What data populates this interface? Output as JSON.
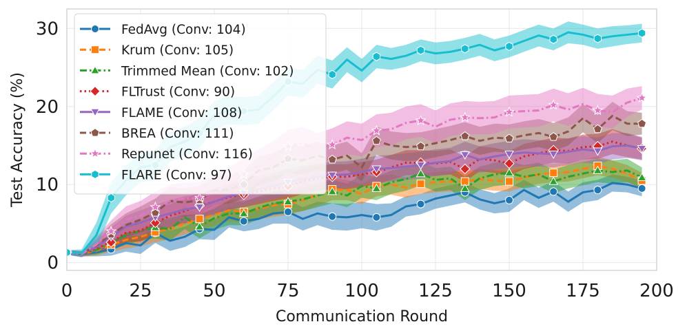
{
  "chart_data": {
    "type": "line",
    "xlabel": "Communication Round",
    "ylabel": "Test Accuracy (%)",
    "xlim": [
      0,
      200
    ],
    "ylim": [
      -1,
      32.5
    ],
    "xticks": [
      0,
      25,
      50,
      75,
      100,
      125,
      150,
      175,
      200
    ],
    "yticks": [
      0,
      10,
      20,
      30
    ],
    "grid": true,
    "legend_position": "top-left",
    "x": [
      0,
      5,
      10,
      15,
      20,
      25,
      30,
      35,
      40,
      45,
      50,
      55,
      60,
      65,
      70,
      75,
      80,
      85,
      90,
      95,
      100,
      105,
      110,
      115,
      120,
      125,
      130,
      135,
      140,
      145,
      150,
      155,
      160,
      165,
      170,
      175,
      180,
      185,
      190,
      195
    ],
    "series": [
      {
        "name": "FedAvg (Conv: 104)",
        "color": "#1f77b4",
        "dash": "solid",
        "marker": "circle",
        "values": [
          1.3,
          1.1,
          1.3,
          1.7,
          2.5,
          2.2,
          3.8,
          2.8,
          3.3,
          4.3,
          4.2,
          5.8,
          5.3,
          5.6,
          6.3,
          6.5,
          5.6,
          6.3,
          5.9,
          5.8,
          6.1,
          5.8,
          6.1,
          7.2,
          7.5,
          8.2,
          8.6,
          9.0,
          8.1,
          7.6,
          8.0,
          9.3,
          8.3,
          9.1,
          7.8,
          9.0,
          9.3,
          10.2,
          10.0,
          9.5
        ],
        "band": [
          0.3,
          0.3,
          0.5,
          0.8,
          1.1,
          1.1,
          1.3,
          1.3,
          1.3,
          1.3,
          1.3,
          1.3,
          1.3,
          1.3,
          1.3,
          1.5,
          1.5,
          1.5,
          1.7,
          1.7,
          1.7,
          1.7,
          1.5,
          1.3,
          1.3,
          1.3,
          1.3,
          1.3,
          1.3,
          1.3,
          1.5,
          1.3,
          1.3,
          1.3,
          1.3,
          1.3,
          1.3,
          1.1,
          1.0,
          1.0
        ]
      },
      {
        "name": "Krum (Conv: 105)",
        "color": "#ff7f0e",
        "dash": "dash",
        "marker": "square",
        "values": [
          1.3,
          1.1,
          1.5,
          2.3,
          2.9,
          3.3,
          3.9,
          4.3,
          5.0,
          5.6,
          6.1,
          6.7,
          6.5,
          6.9,
          7.3,
          7.5,
          8.0,
          8.7,
          9.4,
          9.3,
          8.8,
          9.8,
          10.0,
          9.6,
          10.1,
          10.3,
          10.4,
          10.4,
          10.7,
          10.5,
          10.4,
          10.9,
          11.3,
          11.5,
          11.6,
          12.0,
          12.4,
          12.0,
          11.4,
          10.5
        ],
        "band": [
          0.3,
          0.3,
          0.6,
          0.9,
          1.1,
          1.2,
          1.3,
          1.3,
          1.4,
          1.4,
          1.4,
          1.4,
          1.4,
          1.4,
          1.4,
          1.4,
          1.4,
          1.4,
          1.4,
          1.3,
          1.3,
          1.3,
          1.3,
          1.3,
          1.3,
          1.3,
          1.3,
          1.3,
          1.3,
          1.3,
          1.3,
          1.2,
          1.2,
          1.2,
          1.2,
          1.2,
          1.2,
          1.1,
          1.1,
          1.0
        ]
      },
      {
        "name": "Trimmed Mean (Conv: 102)",
        "color": "#2ca02c",
        "dash": "dashdot",
        "marker": "triangle-up",
        "values": [
          1.3,
          1.1,
          1.6,
          2.6,
          3.5,
          4.1,
          4.5,
          4.3,
          5.8,
          4.6,
          5.7,
          6.3,
          6.3,
          7.0,
          7.6,
          7.8,
          8.1,
          8.6,
          9.1,
          8.6,
          9.8,
          9.5,
          10.3,
          10.7,
          11.4,
          10.6,
          10.8,
          9.5,
          10.8,
          11.3,
          11.5,
          11.0,
          11.3,
          10.4,
          11.0,
          11.4,
          11.8,
          11.6,
          11.8,
          10.9
        ],
        "band": [
          0.3,
          0.3,
          0.6,
          1.0,
          1.2,
          1.3,
          1.4,
          1.5,
          1.5,
          1.5,
          1.5,
          1.5,
          1.5,
          1.5,
          1.5,
          1.5,
          1.5,
          1.5,
          1.5,
          1.5,
          1.5,
          1.5,
          1.5,
          1.5,
          1.5,
          1.5,
          1.5,
          1.5,
          1.5,
          1.5,
          1.5,
          1.5,
          1.5,
          1.5,
          1.5,
          1.5,
          1.5,
          1.5,
          1.5,
          1.3
        ]
      },
      {
        "name": "FLTrust (Conv: 90)",
        "color": "#d62728",
        "dash": "dot",
        "marker": "diamond",
        "values": [
          1.3,
          1.1,
          1.8,
          2.6,
          3.8,
          4.1,
          5.1,
          6.0,
          6.6,
          7.3,
          7.8,
          8.4,
          8.7,
          9.1,
          9.5,
          9.8,
          10.4,
          10.8,
          11.0,
          11.0,
          11.3,
          11.6,
          12.2,
          12.8,
          12.8,
          12.7,
          12.9,
          12.0,
          13.3,
          13.1,
          12.7,
          13.6,
          14.0,
          14.4,
          14.3,
          14.8,
          14.9,
          15.5,
          15.0,
          14.6
        ],
        "band": [
          0.3,
          0.3,
          0.6,
          1.0,
          1.2,
          1.4,
          1.5,
          1.5,
          1.6,
          1.6,
          1.6,
          1.6,
          1.6,
          1.6,
          1.6,
          1.6,
          1.6,
          1.6,
          1.6,
          1.6,
          1.6,
          1.6,
          1.6,
          1.6,
          1.6,
          1.6,
          1.6,
          1.6,
          1.6,
          1.6,
          1.6,
          1.6,
          1.6,
          1.6,
          1.6,
          1.6,
          1.6,
          1.6,
          1.5,
          1.4
        ]
      },
      {
        "name": "FLAME (Conv: 108)",
        "color": "#9467bd",
        "dash": "solid",
        "marker": "triangle-down",
        "values": [
          1.3,
          1.1,
          2.0,
          3.3,
          4.6,
          5.1,
          5.8,
          6.3,
          6.8,
          7.1,
          7.8,
          8.5,
          8.9,
          9.4,
          9.8,
          10.3,
          10.7,
          11.0,
          11.2,
          11.3,
          11.6,
          12.0,
          12.1,
          12.3,
          12.5,
          12.8,
          13.0,
          13.8,
          13.2,
          13.6,
          13.9,
          14.1,
          14.0,
          13.9,
          14.2,
          14.5,
          14.3,
          14.9,
          15.0,
          14.6
        ],
        "band": [
          0.3,
          0.3,
          0.8,
          1.2,
          1.4,
          1.6,
          1.6,
          1.7,
          1.7,
          1.7,
          1.7,
          1.7,
          1.7,
          1.7,
          1.7,
          1.7,
          1.7,
          1.7,
          1.7,
          1.7,
          1.7,
          1.7,
          1.7,
          1.7,
          1.7,
          1.7,
          1.7,
          1.7,
          1.7,
          1.7,
          1.7,
          1.7,
          1.7,
          1.7,
          1.7,
          1.7,
          1.7,
          1.7,
          1.6,
          1.5
        ]
      },
      {
        "name": "BREA (Conv: 111)",
        "color": "#8c564b",
        "dash": "dash",
        "marker": "pentagon",
        "values": [
          1.3,
          1.1,
          2.2,
          3.6,
          4.8,
          5.5,
          6.4,
          7.9,
          7.7,
          8.0,
          9.2,
          9.4,
          10.0,
          11.8,
          12.2,
          13.3,
          13.1,
          13.7,
          13.2,
          13.7,
          12.2,
          15.6,
          15.0,
          14.8,
          14.9,
          15.3,
          15.7,
          16.2,
          15.6,
          16.0,
          15.9,
          16.3,
          16.6,
          16.1,
          16.8,
          18.5,
          17.1,
          18.8,
          17.8,
          17.8
        ],
        "band": [
          0.3,
          0.4,
          0.9,
          1.3,
          1.5,
          1.7,
          1.8,
          1.8,
          1.8,
          1.8,
          1.8,
          1.8,
          1.8,
          1.8,
          1.8,
          1.8,
          1.8,
          1.8,
          1.8,
          1.8,
          1.8,
          1.8,
          1.8,
          1.8,
          1.8,
          1.8,
          1.8,
          1.8,
          1.8,
          1.8,
          1.8,
          1.8,
          1.8,
          1.8,
          1.8,
          1.8,
          1.8,
          1.8,
          1.6,
          1.4
        ]
      },
      {
        "name": "Repunet (Conv: 116)",
        "color": "#e377c2",
        "dash": "dashdot",
        "marker": "star",
        "values": [
          1.3,
          1.1,
          2.3,
          4.0,
          5.5,
          6.0,
          7.1,
          7.9,
          8.2,
          8.3,
          9.0,
          10.1,
          11.3,
          12.4,
          13.5,
          14.9,
          15.3,
          14.5,
          15.1,
          16.0,
          15.7,
          16.9,
          17.1,
          17.9,
          18.2,
          17.4,
          18.3,
          18.6,
          18.5,
          18.6,
          19.3,
          19.4,
          19.5,
          20.2,
          19.6,
          20.3,
          19.5,
          19.3,
          20.5,
          21.1
        ],
        "band": [
          0.3,
          0.4,
          1.0,
          1.4,
          1.7,
          1.9,
          2.0,
          2.1,
          2.1,
          2.1,
          2.1,
          2.1,
          2.1,
          2.1,
          2.1,
          2.1,
          2.1,
          2.1,
          2.1,
          2.1,
          2.1,
          2.1,
          2.1,
          2.1,
          2.1,
          2.1,
          2.1,
          2.1,
          2.1,
          2.1,
          2.1,
          2.1,
          2.1,
          2.1,
          2.1,
          2.1,
          2.1,
          2.1,
          1.8,
          1.5
        ]
      },
      {
        "name": "FLARE (Conv: 97)",
        "color": "#17becf",
        "dash": "solid",
        "marker": "hexagon",
        "values": [
          1.3,
          1.2,
          3.5,
          8.3,
          10.5,
          12.2,
          12.5,
          14.8,
          15.5,
          16.6,
          18.9,
          19.5,
          19.4,
          19.6,
          21.3,
          23.2,
          22.9,
          24.7,
          24.1,
          26.0,
          24.6,
          26.4,
          26.1,
          26.5,
          27.2,
          26.8,
          27.0,
          27.4,
          27.9,
          27.2,
          27.7,
          28.4,
          29.1,
          28.6,
          29.5,
          29.2,
          28.7,
          29.0,
          29.2,
          29.4
        ],
        "band": [
          0.3,
          0.5,
          1.6,
          2.0,
          1.9,
          1.9,
          1.9,
          1.9,
          1.9,
          1.9,
          1.8,
          1.8,
          1.8,
          1.8,
          1.8,
          1.8,
          1.8,
          1.8,
          1.8,
          1.6,
          1.5,
          1.5,
          1.4,
          1.4,
          1.4,
          1.4,
          1.4,
          1.4,
          1.4,
          1.4,
          1.4,
          1.4,
          1.4,
          1.4,
          1.4,
          1.3,
          1.3,
          1.3,
          1.2,
          1.2
        ]
      }
    ]
  }
}
